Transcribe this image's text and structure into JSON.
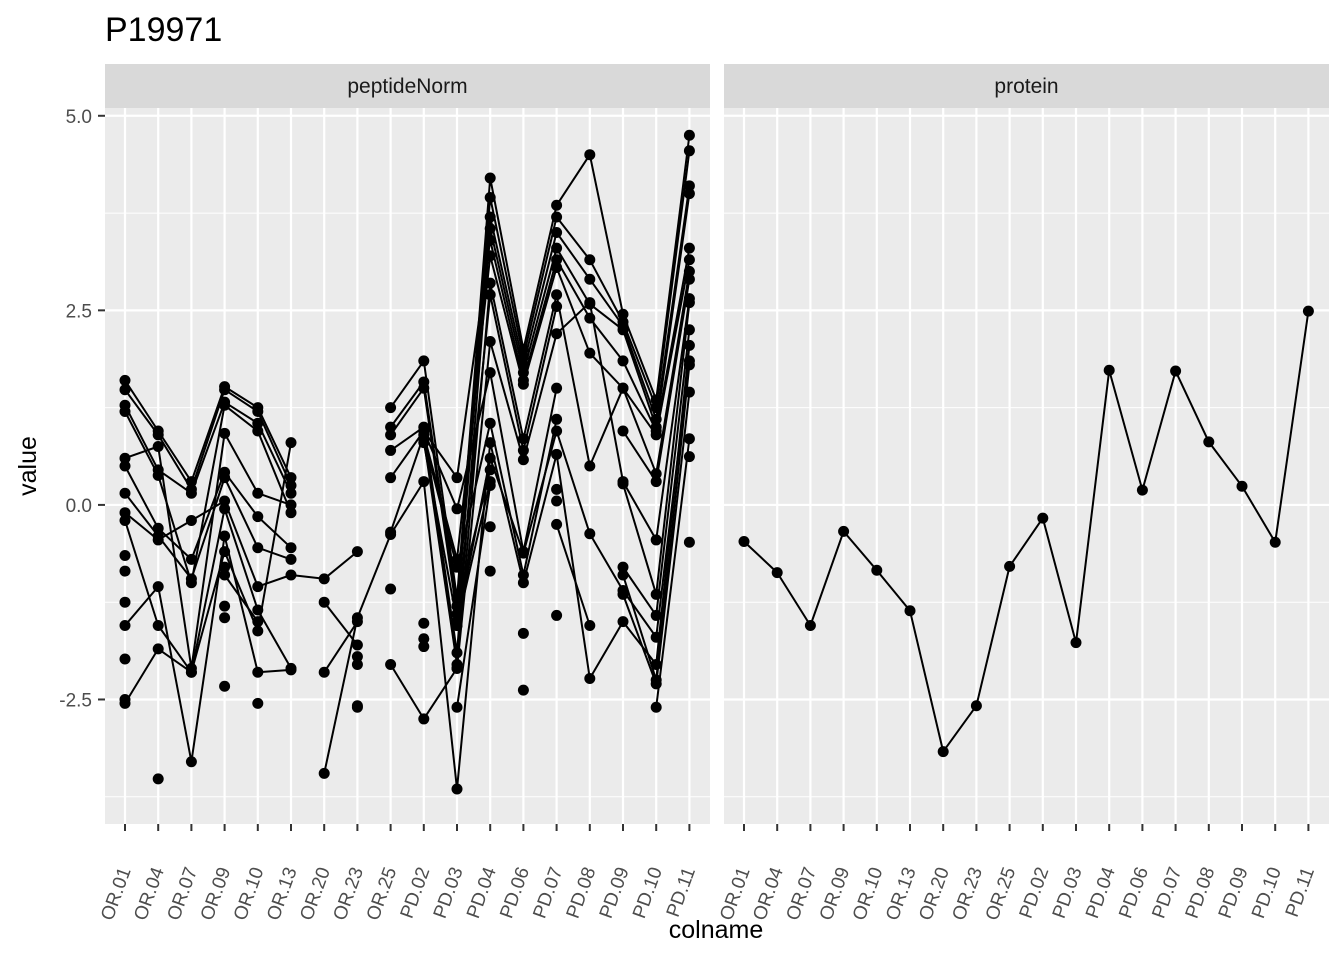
{
  "chart_data": {
    "type": "line",
    "title": "P19971",
    "xlabel": "colname",
    "ylabel": "value",
    "ylim": [
      -4.1,
      5.1
    ],
    "yticks": [
      -2.5,
      0.0,
      2.5,
      5.0
    ],
    "ytick_labels": [
      "-2.5",
      "0.0",
      "2.5",
      "5.0"
    ],
    "grid": true,
    "categories": [
      "OR.01",
      "OR.04",
      "OR.07",
      "OR.09",
      "OR.10",
      "OR.13",
      "OR.20",
      "OR.23",
      "OR.25",
      "PD.02",
      "PD.03",
      "PD.04",
      "PD.06",
      "PD.07",
      "PD.08",
      "PD.09",
      "PD.10",
      "PD.11"
    ],
    "panels": [
      {
        "label": "peptideNorm",
        "series": [
          {
            "values": [
              1.6,
              0.95,
              0.3,
              1.52,
              1.25,
              0.35,
              null,
              null,
              1.25,
              1.85,
              -1.2,
              4.2,
              2.0,
              3.85,
              4.5,
              2.45,
              1.35,
              4.75
            ]
          },
          {
            "values": [
              1.48,
              0.9,
              0.2,
              1.48,
              1.2,
              0.25,
              null,
              null,
              1.0,
              1.58,
              -1.3,
              3.95,
              1.9,
              3.7,
              3.15,
              2.35,
              1.25,
              4.55
            ]
          },
          {
            "values": [
              1.28,
              0.45,
              0.15,
              1.32,
              1.05,
              0.15,
              null,
              null,
              0.9,
              1.5,
              -1.4,
              3.7,
              1.8,
              3.5,
              2.9,
              2.3,
              1.1,
              4.1
            ]
          },
          {
            "values": [
              1.2,
              0.38,
              -1.0,
              1.28,
              0.95,
              -0.1,
              null,
              null,
              0.7,
              1.0,
              -1.9,
              3.55,
              1.7,
              3.3,
              2.58,
              2.25,
              1.0,
              4.0
            ]
          },
          {
            "values": [
              0.6,
              0.75,
              -2.1,
              0.92,
              0.15,
              0.0,
              null,
              null,
              0.35,
              0.95,
              0.35,
              3.4,
              1.6,
              3.15,
              2.4,
              1.85,
              0.95,
              3.3
            ]
          },
          {
            "values": [
              0.5,
              -0.3,
              -0.7,
              0.42,
              -0.15,
              -0.55,
              null,
              null,
              -0.35,
              0.9,
              -0.7,
              3.2,
              1.55,
              3.05,
              1.95,
              1.5,
              0.9,
              3.15
            ]
          },
          {
            "values": [
              0.15,
              -0.4,
              -0.95,
              0.35,
              -0.55,
              -0.7,
              null,
              null,
              null,
              0.85,
              -2.05,
              2.85,
              0.85,
              2.7,
              0.5,
              1.5,
              0.4,
              3.0
            ]
          },
          {
            "values": [
              -0.1,
              -0.45,
              -0.2,
              0.05,
              -1.05,
              -0.9,
              -0.95,
              -0.6,
              null,
              0.8,
              -1.5,
              2.7,
              0.7,
              2.55,
              null,
              0.95,
              0.3,
              2.9
            ]
          },
          {
            "values": [
              -0.2,
              -1.55,
              -2.15,
              -0.05,
              -1.35,
              -2.1,
              null,
              null,
              -2.05,
              -2.75,
              -2.1,
              2.1,
              0.58,
              2.2,
              2.6,
              0.3,
              -0.45,
              2.65
            ]
          },
          {
            "values": [
              -1.55,
              -1.05,
              -3.3,
              -0.4,
              -2.15,
              -2.12,
              null,
              null,
              null,
              0.95,
              -0.05,
              1.7,
              -0.6,
              1.5,
              null,
              0.27,
              -1.15,
              2.6
            ]
          },
          {
            "values": [
              -2.55,
              -1.85,
              -2.15,
              -0.6,
              -1.62,
              0.8,
              null,
              null,
              null,
              0.85,
              -0.8,
              1.05,
              -0.9,
              1.1,
              null,
              -0.8,
              -1.42,
              2.25
            ]
          },
          {
            "values": [
              null,
              null,
              null,
              -0.9,
              -1.5,
              null,
              -3.45,
              -1.45,
              -0.38,
              0.3,
              -3.65,
              0.8,
              -1.0,
              0.65,
              -2.23,
              -1.5,
              -2.05,
              2.05
            ]
          },
          {
            "values": [
              null,
              null,
              null,
              -1.3,
              null,
              null,
              -2.15,
              -1.5,
              null,
              null,
              -1.55,
              0.6,
              -0.62,
              0.95,
              -0.37,
              -1.1,
              -1.7,
              1.85
            ]
          },
          {
            "values": [
              null,
              null,
              null,
              -1.45,
              null,
              null,
              -1.25,
              -1.8,
              null,
              null,
              -1.3,
              0.45,
              null,
              0.2,
              null,
              -0.9,
              -2.25,
              1.8
            ]
          },
          {
            "values": [
              null,
              null,
              null,
              -0.8,
              null,
              null,
              null,
              -1.95,
              null,
              null,
              -1.55,
              0.3,
              null,
              0.05,
              null,
              -1.15,
              -2.3,
              1.45
            ]
          },
          {
            "values": [
              null,
              null,
              null,
              null,
              null,
              null,
              null,
              null,
              null,
              null,
              -2.6,
              0.25,
              null,
              -0.25,
              -1.55,
              null,
              -2.6,
              0.85
            ]
          }
        ],
        "extra_points": [
          {
            "x": "OR.01",
            "y": -0.65
          },
          {
            "x": "OR.01",
            "y": -0.85
          },
          {
            "x": "OR.01",
            "y": -1.25
          },
          {
            "x": "OR.01",
            "y": -1.98
          },
          {
            "x": "OR.01",
            "y": -2.5
          },
          {
            "x": "OR.04",
            "y": -3.52
          },
          {
            "x": "OR.09",
            "y": -2.33
          },
          {
            "x": "OR.10",
            "y": -2.55
          },
          {
            "x": "OR.23",
            "y": -2.05
          },
          {
            "x": "OR.23",
            "y": -2.58
          },
          {
            "x": "OR.23",
            "y": -2.6
          },
          {
            "x": "OR.25",
            "y": -1.08
          },
          {
            "x": "PD.02",
            "y": -1.52
          },
          {
            "x": "PD.02",
            "y": -1.72
          },
          {
            "x": "PD.02",
            "y": -1.82
          },
          {
            "x": "PD.03",
            "y": -2.1
          },
          {
            "x": "PD.04",
            "y": -0.28
          },
          {
            "x": "PD.04",
            "y": -0.85
          },
          {
            "x": "PD.06",
            "y": -1.65
          },
          {
            "x": "PD.06",
            "y": -2.38
          },
          {
            "x": "PD.07",
            "y": -1.42
          },
          {
            "x": "PD.11",
            "y": 0.62
          },
          {
            "x": "PD.11",
            "y": -0.48
          }
        ]
      },
      {
        "label": "protein",
        "series": [
          {
            "values": [
              -0.47,
              -0.87,
              -1.55,
              -0.34,
              -0.84,
              -1.36,
              -3.17,
              -2.58,
              -0.79,
              -0.17,
              -1.77,
              1.73,
              0.19,
              1.72,
              0.81,
              0.24,
              -0.48,
              2.49
            ]
          }
        ],
        "extra_points": []
      }
    ]
  }
}
